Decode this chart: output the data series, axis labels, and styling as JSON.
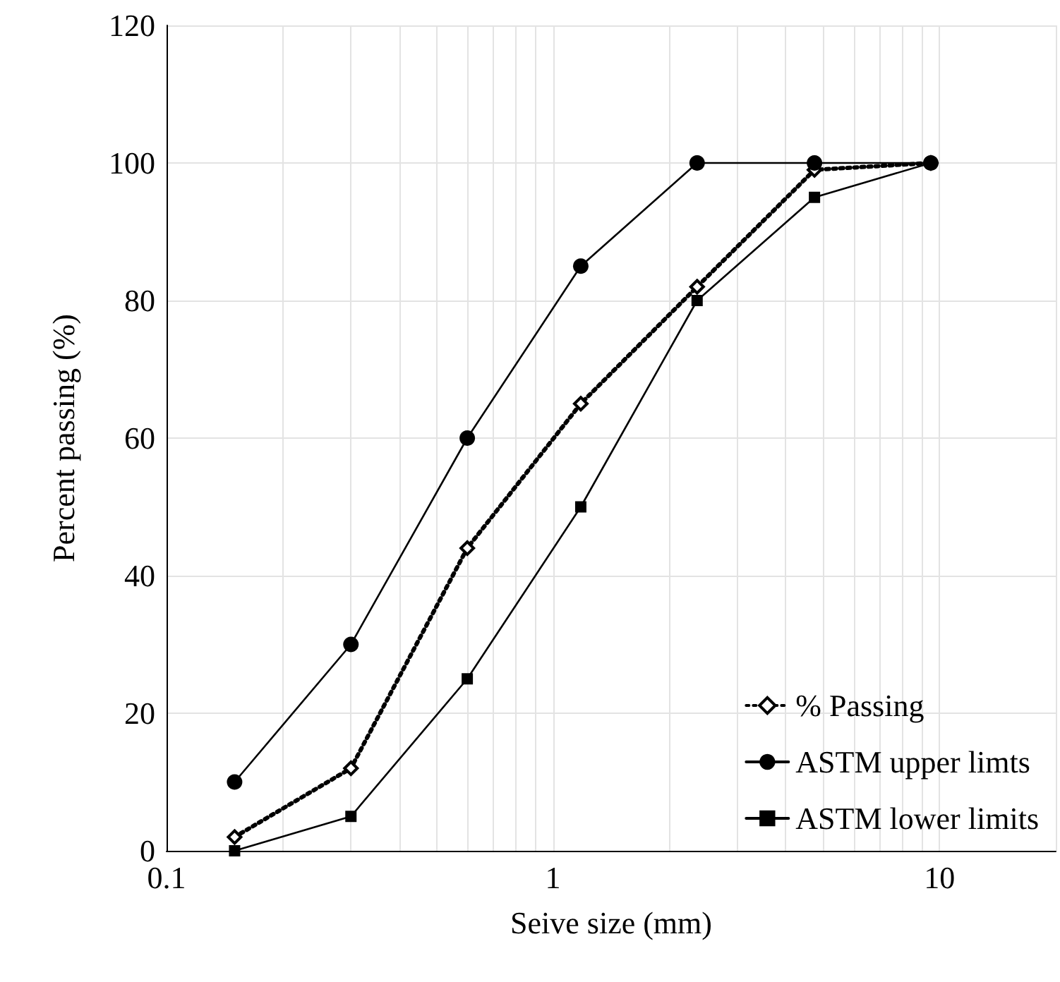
{
  "chart_data": {
    "type": "line",
    "xlabel": "Seive size (mm)",
    "ylabel": "Percent passing (%)",
    "log": "x",
    "grid": true,
    "legend": "bottom right",
    "xlim": [
      0.1,
      20
    ],
    "xticks": [
      0.1,
      {
        "value": 0.2,
        "label": null
      },
      {
        "value": 0.3,
        "label": null
      },
      {
        "value": 0.4,
        "label": null
      },
      {
        "value": 0.5,
        "label": null
      },
      {
        "value": 0.6,
        "label": null
      },
      {
        "value": 0.7,
        "label": null
      },
      {
        "value": 0.8,
        "label": null
      },
      {
        "value": 0.9,
        "label": null
      },
      1,
      {
        "value": 2,
        "label": null
      },
      {
        "value": 3,
        "label": null
      },
      {
        "value": 4,
        "label": null
      },
      {
        "value": 5,
        "label": null
      },
      {
        "value": 6,
        "label": null
      },
      {
        "value": 7,
        "label": null
      },
      {
        "value": 8,
        "label": null
      },
      {
        "value": 9,
        "label": null
      },
      10,
      {
        "value": 20,
        "label": null
      }
    ],
    "ylim": [
      0,
      120
    ],
    "yticks": [
      0,
      20,
      40,
      60,
      80,
      100,
      120
    ],
    "x": [
      0.15,
      0.3,
      0.6,
      1.18,
      2.36,
      4.75,
      9.5
    ],
    "series": [
      {
        "name": "% Passing",
        "color": "#000000",
        "marker": "diamond",
        "line_style": "dotted",
        "values": [
          2,
          12,
          44,
          65,
          82,
          99,
          100
        ]
      },
      {
        "name": "ASTM upper limts",
        "color": "#000000",
        "marker": "circle",
        "line_style": "solid",
        "values": [
          10,
          30,
          60,
          85,
          100,
          100,
          100
        ]
      },
      {
        "name": "ASTM lower limits",
        "color": "#000000",
        "marker": "square",
        "line_style": "solid",
        "values": [
          0,
          5,
          25,
          50,
          80,
          95,
          100
        ]
      }
    ]
  }
}
